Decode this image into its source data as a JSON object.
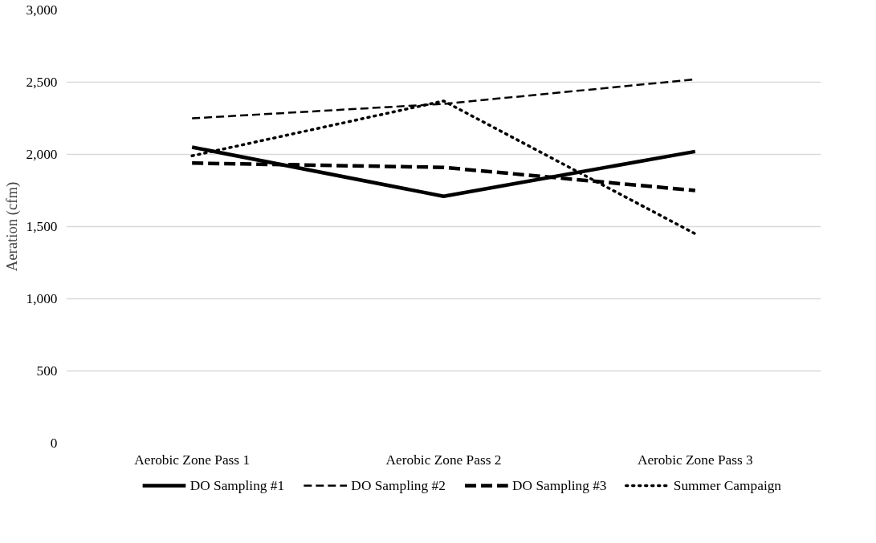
{
  "chart_data": {
    "type": "line",
    "ylabel": "Aeration (cfm)",
    "categories": [
      "Aerobic Zone Pass 1",
      "Aerobic Zone Pass 2",
      "Aerobic Zone Pass 3"
    ],
    "series": [
      {
        "name": "DO Sampling #1",
        "color": "#000000",
        "line_style": "solid",
        "values": [
          2050,
          1710,
          2020
        ]
      },
      {
        "name": "DO Sampling #2",
        "color": "#000000",
        "line_style": "dashed",
        "values": [
          2250,
          2350,
          2520
        ]
      },
      {
        "name": "DO Sampling #3",
        "color": "#000000",
        "line_style": "dashed",
        "values": [
          1940,
          1910,
          1750
        ]
      },
      {
        "name": "Summer Campaign",
        "color": "#000000",
        "line_style": "dotted",
        "values": [
          1990,
          2370,
          1450
        ]
      }
    ],
    "ylim": [
      0,
      3000
    ],
    "yticks": [
      {
        "value": 0,
        "label": "0"
      },
      {
        "value": 500,
        "label": "500"
      },
      {
        "value": 1000,
        "label": "1,000"
      },
      {
        "value": 1500,
        "label": "1,500"
      },
      {
        "value": 2000,
        "label": "2,000"
      },
      {
        "value": 2500,
        "label": "2,500"
      },
      {
        "value": 3000,
        "label": "3,000"
      }
    ],
    "grid": "y",
    "legend": "bottom",
    "marker": "none"
  }
}
